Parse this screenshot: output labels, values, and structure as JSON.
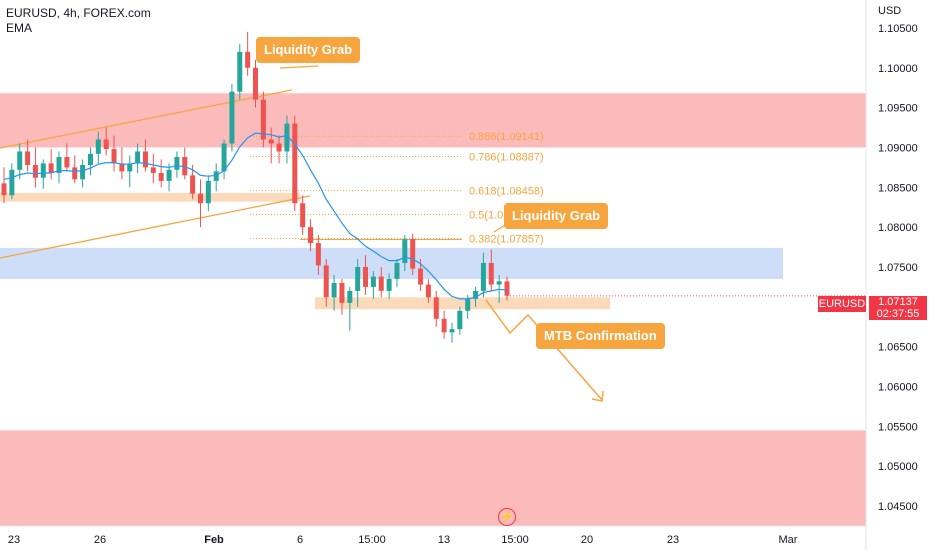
{
  "header": {
    "title": "EURUSD, 4h, FOREX.com",
    "indicator": "EMA"
  },
  "axis": {
    "currency": "USD",
    "y_ticks": [
      "1.10500",
      "1.10000",
      "1.09500",
      "1.09000",
      "1.08500",
      "1.08000",
      "1.07500",
      "1.07000",
      "1.06500",
      "1.06000",
      "1.05500",
      "1.05000",
      "1.04500"
    ],
    "x_ticks": [
      "23",
      "26",
      "Feb",
      "6",
      "15:00",
      "13",
      "15:00",
      "20",
      "23",
      "Mar"
    ]
  },
  "price_tag": {
    "symbol": "EURUSD",
    "price": "1.07137",
    "countdown": "02:37:55"
  },
  "annotations": {
    "liquidity_grab_top": "Liquidity Grab",
    "liquidity_grab_mid": "Liquidity Grab",
    "mtb_confirmation": "MTB Confirmation"
  },
  "fib_levels": [
    {
      "label": "0.886(1.09141)",
      "value": 1.09141
    },
    {
      "label": "0.786(1.08887)",
      "value": 1.08887
    },
    {
      "label": "0.618(1.08458)",
      "value": 1.08458
    },
    {
      "label": "0.5(1.0",
      "value": 1.08158
    },
    {
      "label": "0.382(1.07857)",
      "value": 1.07857
    }
  ],
  "colors": {
    "up": "#26a69a",
    "down": "#ef5350",
    "ema": "#2196f3",
    "fib": "#f7a53e",
    "supply_zone": "#fbb4b4",
    "demand_zone": "#c9daf8",
    "orange_zone": "#fbd5b4",
    "callout": "#f7a53e"
  },
  "chart_data": {
    "type": "candlestick",
    "title": "EURUSD, 4h, FOREX.com",
    "ylim": [
      1.0425,
      1.1075
    ],
    "ylabel": "USD",
    "x_tick_labels": [
      "23",
      "26",
      "Feb",
      "6",
      "15:00",
      "13",
      "15:00",
      "20",
      "23",
      "Mar"
    ],
    "last_price": 1.07137,
    "zones": [
      {
        "type": "supply",
        "from": 1.09,
        "to": 1.0968
      },
      {
        "type": "supply",
        "from": 1.0425,
        "to": 1.0545
      },
      {
        "type": "demand",
        "from": 1.0735,
        "to": 1.0774
      },
      {
        "type": "level",
        "from": 1.0832,
        "to": 1.0843
      },
      {
        "type": "level",
        "from": 1.0697,
        "to": 1.0712
      }
    ],
    "series": [
      {
        "name": "EURUSD",
        "ohlc": [
          [
            1.0855,
            1.0875,
            1.083,
            1.084
          ],
          [
            1.084,
            1.088,
            1.0835,
            1.0872
          ],
          [
            1.0872,
            1.0905,
            1.086,
            1.0895
          ],
          [
            1.0895,
            1.091,
            1.087,
            1.0878
          ],
          [
            1.0878,
            1.09,
            1.085,
            1.0862
          ],
          [
            1.0862,
            1.0885,
            1.0848,
            1.088
          ],
          [
            1.088,
            1.0898,
            1.086,
            1.0868
          ],
          [
            1.0868,
            1.0895,
            1.0855,
            1.0888
          ],
          [
            1.0888,
            1.0905,
            1.087,
            1.0875
          ],
          [
            1.0875,
            1.089,
            1.0855,
            1.086
          ],
          [
            1.086,
            1.0885,
            1.085,
            1.0878
          ],
          [
            1.0878,
            1.09,
            1.0865,
            1.0892
          ],
          [
            1.0892,
            1.092,
            1.088,
            1.091
          ],
          [
            1.091,
            1.0925,
            1.089,
            1.0898
          ],
          [
            1.0898,
            1.0915,
            1.087,
            1.088
          ],
          [
            1.088,
            1.09,
            1.086,
            1.087
          ],
          [
            1.087,
            1.089,
            1.085,
            1.088
          ],
          [
            1.088,
            1.0905,
            1.0868,
            1.0895
          ],
          [
            1.0895,
            1.091,
            1.087,
            1.0875
          ],
          [
            1.0875,
            1.0892,
            1.0855,
            1.0868
          ],
          [
            1.0868,
            1.0885,
            1.085,
            1.0858
          ],
          [
            1.0858,
            1.088,
            1.0845,
            1.0872
          ],
          [
            1.0872,
            1.0895,
            1.0862,
            1.0888
          ],
          [
            1.0888,
            1.09,
            1.086,
            1.0865
          ],
          [
            1.0865,
            1.0878,
            1.0835,
            1.0842
          ],
          [
            1.0842,
            1.086,
            1.08,
            1.083
          ],
          [
            1.083,
            1.0865,
            1.082,
            1.0858
          ],
          [
            1.0858,
            1.088,
            1.0845,
            1.087
          ],
          [
            1.087,
            1.091,
            1.086,
            1.0905
          ],
          [
            1.0905,
            1.098,
            1.0895,
            1.097
          ],
          [
            1.097,
            1.103,
            1.096,
            1.102
          ],
          [
            1.102,
            1.1045,
            1.099,
            1.1
          ],
          [
            1.1,
            1.101,
            1.095,
            1.096
          ],
          [
            1.096,
            1.097,
            1.09,
            1.091
          ],
          [
            1.091,
            1.0925,
            1.088,
            1.0905
          ],
          [
            1.0905,
            1.0915,
            1.088,
            1.0895
          ],
          [
            1.0895,
            1.094,
            1.088,
            1.093
          ],
          [
            1.093,
            1.094,
            1.082,
            1.083
          ],
          [
            1.083,
            1.084,
            1.079,
            1.08
          ],
          [
            1.08,
            1.081,
            1.077,
            1.078
          ],
          [
            1.078,
            1.079,
            1.074,
            1.0752
          ],
          [
            1.0752,
            1.076,
            1.07,
            1.0712
          ],
          [
            1.0712,
            1.074,
            1.0695,
            1.073
          ],
          [
            1.073,
            1.0735,
            1.069,
            1.0705
          ],
          [
            1.0705,
            1.0725,
            1.067,
            1.072
          ],
          [
            1.072,
            1.076,
            1.07,
            1.075
          ],
          [
            1.075,
            1.0765,
            1.0715,
            1.0725
          ],
          [
            1.0725,
            1.0745,
            1.071,
            1.0738
          ],
          [
            1.0738,
            1.075,
            1.0712,
            1.072
          ],
          [
            1.072,
            1.0742,
            1.071,
            1.0735
          ],
          [
            1.0735,
            1.076,
            1.0725,
            1.0755
          ],
          [
            1.0755,
            1.079,
            1.0745,
            1.0785
          ],
          [
            1.0785,
            1.0792,
            1.074,
            1.0748
          ],
          [
            1.0748,
            1.076,
            1.072,
            1.0728
          ],
          [
            1.0728,
            1.0735,
            1.0705,
            1.0712
          ],
          [
            1.0712,
            1.072,
            1.0675,
            1.0685
          ],
          [
            1.0685,
            1.0695,
            1.066,
            1.0668
          ],
          [
            1.0668,
            1.068,
            1.0655,
            1.0672
          ],
          [
            1.0672,
            1.07,
            1.0665,
            1.0695
          ],
          [
            1.0695,
            1.0715,
            1.0685,
            1.071
          ],
          [
            1.071,
            1.0725,
            1.07,
            1.072
          ],
          [
            1.072,
            1.0768,
            1.0712,
            1.0755
          ],
          [
            1.0755,
            1.0772,
            1.072,
            1.0728
          ],
          [
            1.0728,
            1.074,
            1.0705,
            1.0732
          ],
          [
            1.0732,
            1.0738,
            1.0708,
            1.0714
          ]
        ]
      },
      {
        "name": "EMA",
        "values": [
          1.086,
          1.0862,
          1.0866,
          1.0868,
          1.0867,
          1.0868,
          1.0868,
          1.0871,
          1.0871,
          1.087,
          1.0871,
          1.0874,
          1.0879,
          1.0881,
          1.0881,
          1.0879,
          1.0879,
          1.0881,
          1.088,
          1.0878,
          1.0876,
          1.0875,
          1.0877,
          1.0876,
          1.0872,
          1.0865,
          1.0864,
          1.0865,
          1.0871,
          1.0884,
          1.0901,
          1.0912,
          1.0918,
          1.0917,
          1.0916,
          1.0913,
          1.0915,
          1.0904,
          1.089,
          1.0872,
          1.0855,
          1.0835,
          1.082,
          1.0805,
          1.0792,
          1.0785,
          1.0776,
          1.077,
          1.0763,
          1.0758,
          1.0758,
          1.0762,
          1.076,
          1.0754,
          1.0745,
          1.0734,
          1.0722,
          1.0713,
          1.071,
          1.071,
          1.0712,
          1.0718,
          1.072,
          1.0722,
          1.0721
        ]
      }
    ]
  }
}
